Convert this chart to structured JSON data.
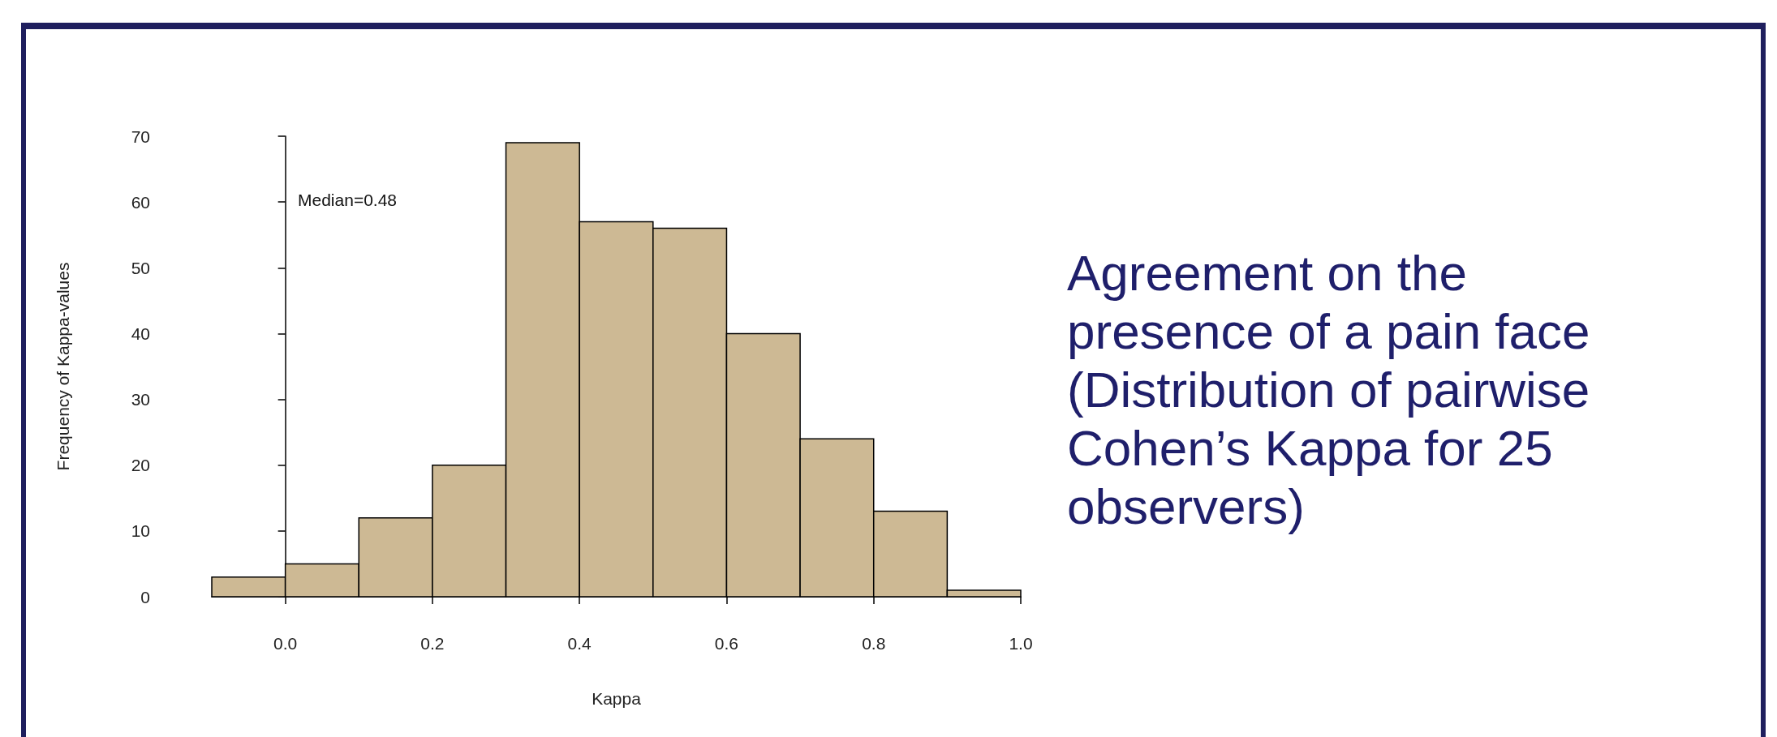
{
  "chart_data": {
    "type": "histogram",
    "title": "Agreement on the presence of a pain face (Distribution of pairwise Cohen’s Kappa for 25 observers)",
    "xlabel": "Kappa",
    "ylabel": "Frequency of Kappa-values",
    "annotations": [
      "Median=0.48"
    ],
    "bins": [
      -0.1,
      0,
      0.1,
      0.2,
      0.3,
      0.4,
      0.5,
      0.6,
      0.7,
      0.8,
      0.9,
      1.0
    ],
    "values": [
      3,
      5,
      12,
      20,
      69,
      57,
      56,
      40,
      24,
      13,
      1
    ],
    "color": "#cdb994",
    "xlim": [
      -0.1,
      1.0
    ],
    "xticks": [
      {
        "value": 0,
        "label": "0.0"
      },
      0.2,
      0.4,
      0.6,
      0.8,
      {
        "value": 1,
        "label": "1.0"
      }
    ],
    "ylim": [
      0,
      70
    ],
    "yticks": [
      0,
      10,
      20,
      30,
      40,
      50,
      60,
      70
    ]
  }
}
